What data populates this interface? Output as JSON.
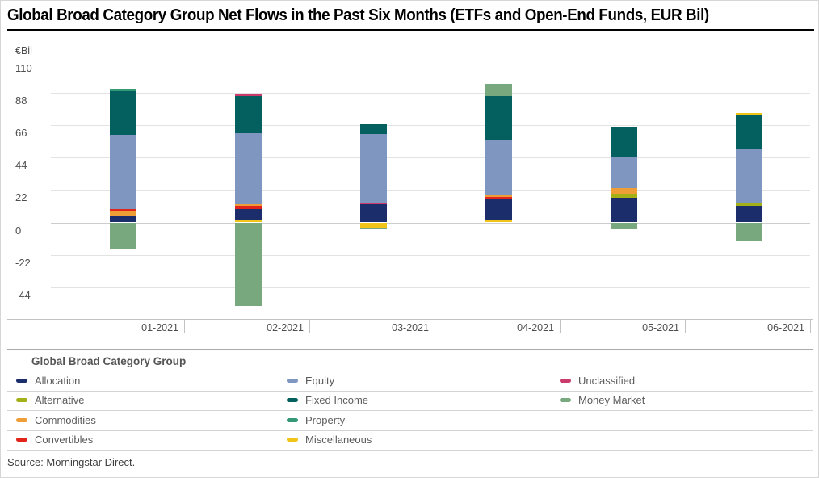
{
  "page": {
    "title": "Global Broad Category Group Net Flows in the Past Six Months (ETFs and Open-End Funds, EUR Bil)",
    "source": "Source: Morningstar Direct."
  },
  "chart_data": {
    "type": "bar",
    "stacked": true,
    "title": "Global Broad Category Group Net Flows in the Past Six Months (ETFs and Open-End Funds, EUR Bil)",
    "unit_label": "€Bil",
    "xlabel": "",
    "ylabel": "€Bil",
    "categories": [
      "01-2021",
      "02-2021",
      "03-2021",
      "04-2021",
      "05-2021",
      "06-2021"
    ],
    "y_ticks": [
      110,
      88,
      66,
      44,
      22,
      0,
      -22,
      -44
    ],
    "ylim": [
      -63,
      112
    ],
    "grid": true,
    "legend_position": "bottom",
    "legend_title": "Global Broad Category Group",
    "legend_columns": [
      [
        "Allocation",
        "Alternative",
        "Commodities",
        "Convertibles"
      ],
      [
        "Equity",
        "Fixed Income",
        "Property",
        "Miscellaneous"
      ],
      [
        "Unclassified",
        "Money Market"
      ]
    ],
    "colors": {
      "Allocation": "#1b2d6b",
      "Alternative": "#a3b117",
      "Commodities": "#ef9d37",
      "Convertibles": "#e2231a",
      "Equity": "#7e96c0",
      "Fixed Income": "#045f5f",
      "Property": "#339977",
      "Miscellaneous": "#f0c419",
      "Unclassified": "#ca3b6b",
      "Money Market": "#78a87d"
    },
    "series": [
      {
        "name": "Allocation",
        "values": [
          4.4,
          8.2,
          12.6,
          14.2,
          16.7,
          11.5
        ]
      },
      {
        "name": "Alternative",
        "values": [
          0,
          0,
          0,
          0,
          2.7,
          1.6
        ]
      },
      {
        "name": "Commodities",
        "values": [
          3.3,
          1.2,
          0,
          1.3,
          3.7,
          0
        ]
      },
      {
        "name": "Convertibles",
        "values": [
          1.1,
          1.9,
          0,
          1.4,
          0,
          0
        ]
      },
      {
        "name": "Equity",
        "values": [
          50.9,
          48.3,
          46.5,
          37.5,
          21.1,
          36.6
        ]
      },
      {
        "name": "Fixed Income",
        "values": [
          29.5,
          25.2,
          7.1,
          30.1,
          20.6,
          23.7
        ]
      },
      {
        "name": "Property",
        "values": [
          1.6,
          0,
          0,
          0,
          0,
          0
        ]
      },
      {
        "name": "Miscellaneous",
        "values": [
          0,
          1.1,
          -3.8,
          1.5,
          0,
          1.1
        ]
      },
      {
        "name": "Unclassified",
        "values": [
          0,
          1.1,
          1.1,
          0,
          0,
          0
        ]
      },
      {
        "name": "Money Market",
        "values": [
          -18.1,
          -56.9,
          -1.1,
          8.2,
          -4.8,
          -13.0
        ]
      }
    ],
    "bars": [
      {
        "month": "01-2021",
        "segments": [
          {
            "category": "Allocation",
            "value": 4.4
          },
          {
            "category": "Commodities",
            "value": 3.3
          },
          {
            "category": "Convertibles",
            "value": 1.1
          },
          {
            "category": "Equity",
            "value": 50.9
          },
          {
            "category": "Fixed Income",
            "value": 29.5
          },
          {
            "category": "Property",
            "value": 1.6
          },
          {
            "category": "Money Market",
            "value": -18.1
          }
        ]
      },
      {
        "month": "02-2021",
        "segments": [
          {
            "category": "Miscellaneous",
            "value": 1.1
          },
          {
            "category": "Allocation",
            "value": 8.2
          },
          {
            "category": "Convertibles",
            "value": 1.9
          },
          {
            "category": "Commodities",
            "value": 1.2
          },
          {
            "category": "Equity",
            "value": 48.3
          },
          {
            "category": "Fixed Income",
            "value": 25.2
          },
          {
            "category": "Unclassified",
            "value": 1.1
          },
          {
            "category": "Money Market",
            "value": -56.9
          }
        ]
      },
      {
        "month": "03-2021",
        "segments": [
          {
            "category": "Allocation",
            "value": 12.6
          },
          {
            "category": "Unclassified",
            "value": 1.1
          },
          {
            "category": "Equity",
            "value": 46.5
          },
          {
            "category": "Fixed Income",
            "value": 7.1
          },
          {
            "category": "Miscellaneous",
            "value": -3.8
          },
          {
            "category": "Money Market",
            "value": -1.1
          }
        ]
      },
      {
        "month": "04-2021",
        "segments": [
          {
            "category": "Miscellaneous",
            "value": 1.5
          },
          {
            "category": "Allocation",
            "value": 14.2
          },
          {
            "category": "Convertibles",
            "value": 1.4
          },
          {
            "category": "Commodities",
            "value": 1.3
          },
          {
            "category": "Equity",
            "value": 37.5
          },
          {
            "category": "Fixed Income",
            "value": 30.1
          },
          {
            "category": "Money Market",
            "value": 8.2
          }
        ]
      },
      {
        "month": "05-2021",
        "segments": [
          {
            "category": "Allocation",
            "value": 16.7
          },
          {
            "category": "Alternative",
            "value": 2.7
          },
          {
            "category": "Commodities",
            "value": 3.7
          },
          {
            "category": "Equity",
            "value": 21.1
          },
          {
            "category": "Fixed Income",
            "value": 20.6
          },
          {
            "category": "Money Market",
            "value": -4.8
          }
        ]
      },
      {
        "month": "06-2021",
        "segments": [
          {
            "category": "Allocation",
            "value": 11.5
          },
          {
            "category": "Alternative",
            "value": 1.6
          },
          {
            "category": "Equity",
            "value": 36.6
          },
          {
            "category": "Fixed Income",
            "value": 23.7
          },
          {
            "category": "Miscellaneous",
            "value": 1.1
          },
          {
            "category": "Money Market",
            "value": -13.0
          }
        ]
      }
    ]
  }
}
